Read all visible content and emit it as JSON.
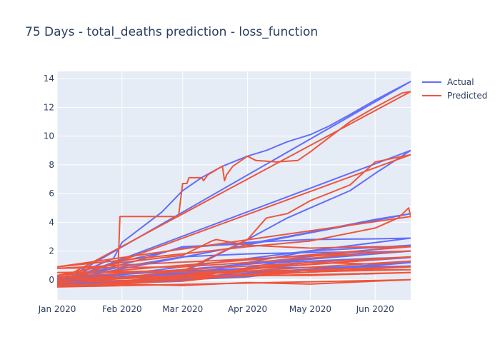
{
  "chart_data": {
    "type": "line",
    "title": "75 Days - total_deaths prediction - loss_function",
    "xlabel": "",
    "ylabel": "",
    "x_range": [
      "2020-01-01",
      "2020-06-18"
    ],
    "ylim": [
      -1.4,
      14.5
    ],
    "x_ticks": [
      {
        "date": "2020-01-01",
        "label": "Jan 2020"
      },
      {
        "date": "2020-02-01",
        "label": "Feb 2020"
      },
      {
        "date": "2020-03-01",
        "label": "Mar 2020"
      },
      {
        "date": "2020-04-01",
        "label": "Apr 2020"
      },
      {
        "date": "2020-05-01",
        "label": "May 2020"
      },
      {
        "date": "2020-06-01",
        "label": "Jun 2020"
      }
    ],
    "y_ticks": [
      {
        "value": 0,
        "label": "0"
      },
      {
        "value": 2,
        "label": "2"
      },
      {
        "value": 4,
        "label": "4"
      },
      {
        "value": 6,
        "label": "6"
      },
      {
        "value": 8,
        "label": "8"
      },
      {
        "value": 10,
        "label": "10"
      },
      {
        "value": 12,
        "label": "12"
      },
      {
        "value": 14,
        "label": "14"
      }
    ],
    "grid": true,
    "legend": {
      "position": "top-right"
    },
    "colors": {
      "Actual": "#636efa",
      "Predicted": "#ef553b",
      "plot_bg": "#e5ecf6",
      "grid": "#ffffff",
      "text": "#2a3f5f"
    },
    "series": [
      {
        "name": "Actual",
        "color": "#636efa",
        "traces": [
          {
            "x": [
              "2020-01-01",
              "2020-01-20",
              "2020-01-28",
              "2020-02-01",
              "2020-02-10",
              "2020-02-20",
              "2020-03-01",
              "2020-03-10",
              "2020-03-20",
              "2020-04-01",
              "2020-04-10",
              "2020-04-20",
              "2020-05-01",
              "2020-05-10",
              "2020-05-20",
              "2020-06-01",
              "2020-06-10",
              "2020-06-18",
              "2020-01-01"
            ],
            "y": [
              -0.3,
              1.0,
              1.5,
              2.6,
              3.6,
              4.7,
              6.2,
              7.1,
              7.9,
              8.6,
              9.0,
              9.6,
              10.1,
              10.7,
              11.5,
              12.5,
              13.2,
              13.8,
              -0.3
            ]
          },
          {
            "x": [
              "2020-01-01",
              "2020-02-01",
              "2020-03-01",
              "2020-04-01",
              "2020-05-01",
              "2020-06-01",
              "2020-06-18",
              "2020-01-01"
            ],
            "y": [
              -0.2,
              1.3,
              2.2,
              2.6,
              2.8,
              2.85,
              2.9,
              -0.2
            ]
          },
          {
            "x": [
              "2020-01-01",
              "2020-03-01",
              "2020-04-01",
              "2020-04-20",
              "2020-05-01",
              "2020-05-20",
              "2020-06-01",
              "2020-06-18",
              "2020-01-01"
            ],
            "y": [
              -0.25,
              0.5,
              2.8,
              4.3,
              5.0,
              6.2,
              7.4,
              9.0,
              -0.25
            ]
          },
          {
            "x": [
              "2020-01-01",
              "2020-02-10",
              "2020-03-01",
              "2020-04-01",
              "2020-05-01",
              "2020-06-01",
              "2020-06-18",
              "2020-01-01"
            ],
            "y": [
              -0.1,
              1.4,
              2.3,
              2.5,
              3.3,
              4.2,
              4.6,
              -0.1
            ]
          },
          {
            "x": [
              "2020-01-01",
              "2020-02-01",
              "2020-03-01",
              "2020-04-01",
              "2020-05-01",
              "2020-06-01",
              "2020-06-18",
              "2020-01-01"
            ],
            "y": [
              0.0,
              0.9,
              1.6,
              1.8,
              1.9,
              1.95,
              2.0,
              0.0
            ]
          },
          {
            "x": [
              "2020-01-01",
              "2020-03-01",
              "2020-04-01",
              "2020-05-01",
              "2020-06-01",
              "2020-06-18",
              "2020-01-01"
            ],
            "y": [
              -0.35,
              0.2,
              1.2,
              2.0,
              2.25,
              2.4,
              -0.35
            ]
          },
          {
            "x": [
              "2020-01-01",
              "2020-04-01",
              "2020-05-01",
              "2020-06-01",
              "2020-06-18",
              "2020-01-01"
            ],
            "y": [
              -0.4,
              0.2,
              0.7,
              1.0,
              1.2,
              -0.4
            ]
          },
          {
            "x": [
              "2020-01-01",
              "2020-03-15",
              "2020-04-15",
              "2020-06-01",
              "2020-06-18",
              "2020-01-01"
            ],
            "y": [
              -0.15,
              0.4,
              1.2,
              1.5,
              1.55,
              -0.15
            ]
          },
          {
            "x": [
              "2020-01-01",
              "2020-02-15",
              "2020-04-01",
              "2020-06-18",
              "2020-01-01"
            ],
            "y": [
              0.1,
              0.5,
              0.8,
              0.95,
              0.1
            ]
          }
        ]
      },
      {
        "name": "Predicted",
        "color": "#ef553b",
        "traces": [
          {
            "x": [
              "2020-01-01",
              "2020-01-15",
              "2020-01-30",
              "2020-01-31",
              "2020-02-28",
              "2020-03-01",
              "2020-03-03",
              "2020-03-04",
              "2020-03-10",
              "2020-03-11",
              "2020-03-13",
              "2020-03-20",
              "2020-03-21",
              "2020-03-22",
              "2020-03-25",
              "2020-04-01",
              "2020-04-05",
              "2020-04-15",
              "2020-04-25",
              "2020-05-01",
              "2020-05-10",
              "2020-05-20",
              "2020-06-01",
              "2020-06-10",
              "2020-06-14",
              "2020-06-18",
              "2020-01-01"
            ],
            "y": [
              -0.1,
              0.1,
              0.3,
              4.4,
              4.4,
              6.7,
              6.7,
              7.1,
              7.1,
              6.9,
              7.3,
              7.9,
              6.9,
              7.3,
              7.9,
              8.6,
              8.3,
              8.2,
              8.3,
              8.9,
              9.9,
              11.0,
              12.0,
              12.7,
              13.0,
              13.1,
              -0.1
            ]
          },
          {
            "x": [
              "2020-01-01",
              "2020-03-01",
              "2020-04-01",
              "2020-04-10",
              "2020-04-20",
              "2020-05-01",
              "2020-05-20",
              "2020-06-01",
              "2020-06-18",
              "2020-01-01"
            ],
            "y": [
              -0.3,
              0.6,
              2.8,
              4.3,
              4.6,
              5.5,
              6.6,
              8.2,
              8.7,
              -0.3
            ]
          },
          {
            "x": [
              "2020-01-01",
              "2020-02-10",
              "2020-03-01",
              "2020-04-01",
              "2020-05-01",
              "2020-06-01",
              "2020-06-12",
              "2020-06-17",
              "2020-06-18",
              "2020-01-01"
            ],
            "y": [
              0.9,
              1.5,
              1.8,
              2.3,
              2.7,
              3.6,
              4.3,
              5.0,
              4.4,
              0.9
            ]
          },
          {
            "x": [
              "2020-01-01",
              "2020-02-01",
              "2020-03-01",
              "2020-03-15",
              "2020-03-17",
              "2020-04-01",
              "2020-05-01",
              "2020-06-01",
              "2020-06-18",
              "2020-01-01"
            ],
            "y": [
              0.3,
              1.2,
              1.7,
              2.7,
              2.8,
              2.4,
              2.2,
              2.3,
              2.3,
              0.3
            ]
          },
          {
            "x": [
              "2020-01-01",
              "2020-02-01",
              "2020-03-01",
              "2020-04-01",
              "2020-05-01",
              "2020-06-01",
              "2020-06-18",
              "2020-01-01"
            ],
            "y": [
              0.8,
              0.85,
              0.9,
              1.2,
              1.5,
              1.9,
              2.0,
              0.8
            ]
          },
          {
            "x": [
              "2020-01-01",
              "2020-02-15",
              "2020-03-15",
              "2020-04-15",
              "2020-05-15",
              "2020-06-18",
              "2020-01-01"
            ],
            "y": [
              0.2,
              0.1,
              0.5,
              0.9,
              1.2,
              1.6,
              0.2
            ]
          },
          {
            "x": [
              "2020-01-01",
              "2020-03-01",
              "2020-04-01",
              "2020-05-01",
              "2020-06-01",
              "2020-06-18",
              "2020-01-01"
            ],
            "y": [
              -0.2,
              0.1,
              0.8,
              1.2,
              1.1,
              1.3,
              -0.2
            ]
          },
          {
            "x": [
              "2020-01-01",
              "2020-03-01",
              "2020-04-01",
              "2020-05-01",
              "2020-06-18",
              "2020-01-01"
            ],
            "y": [
              -0.4,
              -0.1,
              0.4,
              0.7,
              0.9,
              -0.4
            ]
          },
          {
            "x": [
              "2020-01-01",
              "2020-02-01",
              "2020-03-01",
              "2020-04-01",
              "2020-05-01",
              "2020-06-01",
              "2020-06-18",
              "2020-01-01"
            ],
            "y": [
              -0.5,
              -0.3,
              -0.4,
              -0.2,
              -0.3,
              -0.1,
              0.0,
              -0.5
            ]
          },
          {
            "x": [
              "2020-01-01",
              "2020-02-15",
              "2020-04-01",
              "2020-05-15",
              "2020-06-18",
              "2020-01-01"
            ],
            "y": [
              0.5,
              0.6,
              0.4,
              0.6,
              0.7,
              0.5
            ]
          },
          {
            "x": [
              "2020-01-01",
              "2020-03-01",
              "2020-05-01",
              "2020-06-18",
              "2020-01-01"
            ],
            "y": [
              0.0,
              0.3,
              0.3,
              0.5,
              0.0
            ]
          }
        ]
      }
    ]
  }
}
